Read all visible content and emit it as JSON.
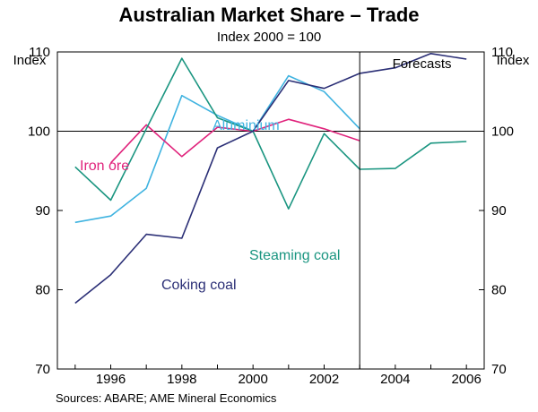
{
  "chart_data": {
    "type": "line",
    "title": "Australian Market Share – Trade",
    "subtitle": "Index 2000 = 100",
    "ylabel_left": "Index",
    "ylabel_right": "Index",
    "ylim": [
      70,
      110
    ],
    "yticks": [
      70,
      80,
      90,
      100,
      110
    ],
    "xlim": [
      1994.5,
      2006.5
    ],
    "xticks": [
      1996,
      1998,
      2000,
      2002,
      2004,
      2006
    ],
    "forecast_start": 2003,
    "forecast_label": "Forecasts",
    "reference_line": 100,
    "source": "Sources: ABARE; AME Mineral Economics",
    "series": [
      {
        "name": "Aluminium",
        "color": "#3fb3e0",
        "x": [
          1995,
          1996,
          1997,
          1998,
          1999,
          2000,
          2001,
          2002,
          2003
        ],
        "values": [
          88.5,
          89.3,
          92.8,
          104.5,
          102.0,
          100.0,
          107.0,
          105.0,
          100.3
        ]
      },
      {
        "name": "Iron ore",
        "color": "#e0237c",
        "x": [
          1996,
          1997,
          1998,
          1999,
          2000,
          2001,
          2002,
          2003
        ],
        "values": [
          96.0,
          100.8,
          96.8,
          100.5,
          100.0,
          101.5,
          100.3,
          98.8
        ]
      },
      {
        "name": "Steaming coal",
        "color": "#1a9580",
        "x": [
          1995,
          1996,
          1997,
          1998,
          1999,
          2000,
          2001,
          2002,
          2003,
          2004,
          2005,
          2006
        ],
        "values": [
          95.5,
          91.3,
          100.3,
          109.2,
          101.7,
          100.0,
          90.2,
          99.7,
          95.2,
          95.3,
          98.5,
          98.7
        ]
      },
      {
        "name": "Coking coal",
        "color": "#2b2f76",
        "x": [
          1995,
          1996,
          1997,
          1998,
          1999,
          2000,
          2001,
          2002,
          2003,
          2004,
          2005,
          2006
        ],
        "values": [
          78.3,
          81.9,
          87.0,
          86.5,
          97.9,
          100.0,
          106.4,
          105.4,
          107.3,
          108.0,
          109.8,
          109.1
        ]
      }
    ]
  }
}
